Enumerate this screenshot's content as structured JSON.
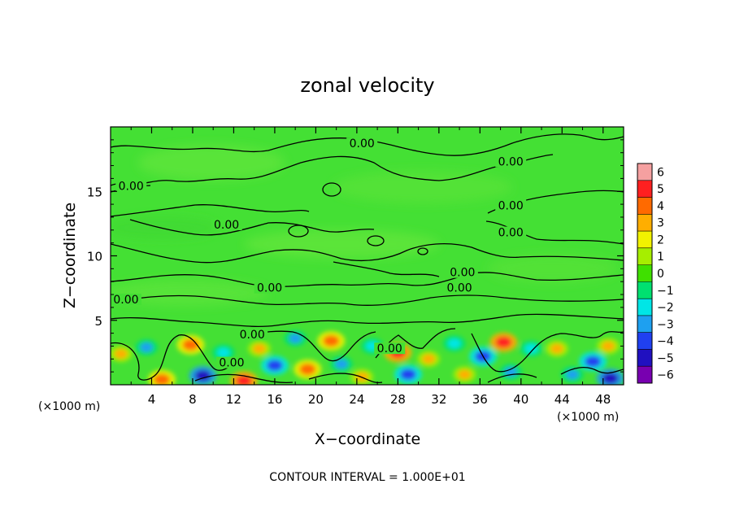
{
  "chart_data": {
    "type": "heatmap",
    "title": "zonal velocity",
    "xlabel": "X−coordinate",
    "ylabel": "Z−coordinate",
    "x_unit_left": "(×1000 m)",
    "x_unit_right": "(×1000 m)",
    "xlim": [
      0,
      50
    ],
    "ylim": [
      0,
      20
    ],
    "x_ticks": [
      4,
      8,
      12,
      16,
      20,
      24,
      28,
      32,
      36,
      40,
      44,
      48
    ],
    "x_tick_labels": [
      "4",
      "8",
      "12",
      "16",
      "20",
      "24",
      "28",
      "32",
      "36",
      "40",
      "44",
      "48"
    ],
    "y_ticks": [
      5,
      10,
      15
    ],
    "y_tick_labels": [
      "5",
      "10",
      "15"
    ],
    "footer": "CONTOUR INTERVAL = 1.000E+01",
    "colorbar": {
      "levels": [
        6,
        5,
        4,
        3,
        2,
        1,
        0,
        -1,
        -2,
        -3,
        -4,
        -5,
        -6
      ],
      "labels": [
        "6",
        "5",
        "4",
        "3",
        "2",
        "1",
        "0",
        "−1",
        "−2",
        "−3",
        "−4",
        "−5",
        "−6"
      ],
      "colors": [
        "#f5a0a0",
        "#ff2020",
        "#ff6a00",
        "#ffae00",
        "#f2f200",
        "#a6ee00",
        "#3fe000",
        "#00e070",
        "#00e6e6",
        "#1ea0f0",
        "#2040f0",
        "#2010c0",
        "#7800b0"
      ]
    },
    "background_value_color": "#44e034",
    "contour_labels": [
      {
        "x": 24.5,
        "z": 18.6,
        "text": "0.00"
      },
      {
        "x": 39.0,
        "z": 17.2,
        "text": "0.00"
      },
      {
        "x": 2.0,
        "z": 15.3,
        "text": "0.00"
      },
      {
        "x": 39.0,
        "z": 13.8,
        "text": "0.00"
      },
      {
        "x": 11.3,
        "z": 12.3,
        "text": "0.00"
      },
      {
        "x": 39.0,
        "z": 11.7,
        "text": "0.00"
      },
      {
        "x": 34.3,
        "z": 8.6,
        "text": "0.00"
      },
      {
        "x": 15.5,
        "z": 7.4,
        "text": "0.00"
      },
      {
        "x": 34.0,
        "z": 7.4,
        "text": "0.00"
      },
      {
        "x": 1.5,
        "z": 6.5,
        "text": "0.00"
      },
      {
        "x": 13.8,
        "z": 3.8,
        "text": "0.00"
      },
      {
        "x": 27.2,
        "z": 2.7,
        "text": "0.00"
      },
      {
        "x": 11.8,
        "z": 1.6,
        "text": "0.00"
      }
    ],
    "anomalies": [
      {
        "x": 1.0,
        "z": 2.4,
        "v": 3
      },
      {
        "x": 3.5,
        "z": 2.9,
        "v": -3
      },
      {
        "x": 5.0,
        "z": 0.4,
        "v": 4
      },
      {
        "x": 7.8,
        "z": 3.1,
        "v": 4
      },
      {
        "x": 9.0,
        "z": 0.7,
        "v": -5
      },
      {
        "x": 11.0,
        "z": 2.5,
        "v": -2
      },
      {
        "x": 13.0,
        "z": 0.3,
        "v": 5
      },
      {
        "x": 14.5,
        "z": 2.8,
        "v": 3
      },
      {
        "x": 16.0,
        "z": 1.5,
        "v": -4
      },
      {
        "x": 18.0,
        "z": 3.6,
        "v": -3
      },
      {
        "x": 19.2,
        "z": 1.2,
        "v": 4
      },
      {
        "x": 21.5,
        "z": 3.4,
        "v": 4
      },
      {
        "x": 22.5,
        "z": 1.6,
        "v": -3
      },
      {
        "x": 24.5,
        "z": 0.6,
        "v": 3
      },
      {
        "x": 25.5,
        "z": 3.0,
        "v": -2
      },
      {
        "x": 28.0,
        "z": 2.5,
        "v": 5
      },
      {
        "x": 29.0,
        "z": 0.8,
        "v": -4
      },
      {
        "x": 31.0,
        "z": 2.0,
        "v": 3
      },
      {
        "x": 33.5,
        "z": 3.2,
        "v": -2
      },
      {
        "x": 34.5,
        "z": 0.8,
        "v": 3
      },
      {
        "x": 36.3,
        "z": 2.2,
        "v": -4
      },
      {
        "x": 38.3,
        "z": 3.3,
        "v": 5
      },
      {
        "x": 39.0,
        "z": 1.0,
        "v": -3
      },
      {
        "x": 41.0,
        "z": 2.8,
        "v": -2
      },
      {
        "x": 43.5,
        "z": 2.8,
        "v": 3
      },
      {
        "x": 45.0,
        "z": 0.8,
        "v": -3
      },
      {
        "x": 47.0,
        "z": 1.8,
        "v": -4
      },
      {
        "x": 48.5,
        "z": 3.0,
        "v": 3
      },
      {
        "x": 48.7,
        "z": 0.5,
        "v": -5
      }
    ]
  }
}
